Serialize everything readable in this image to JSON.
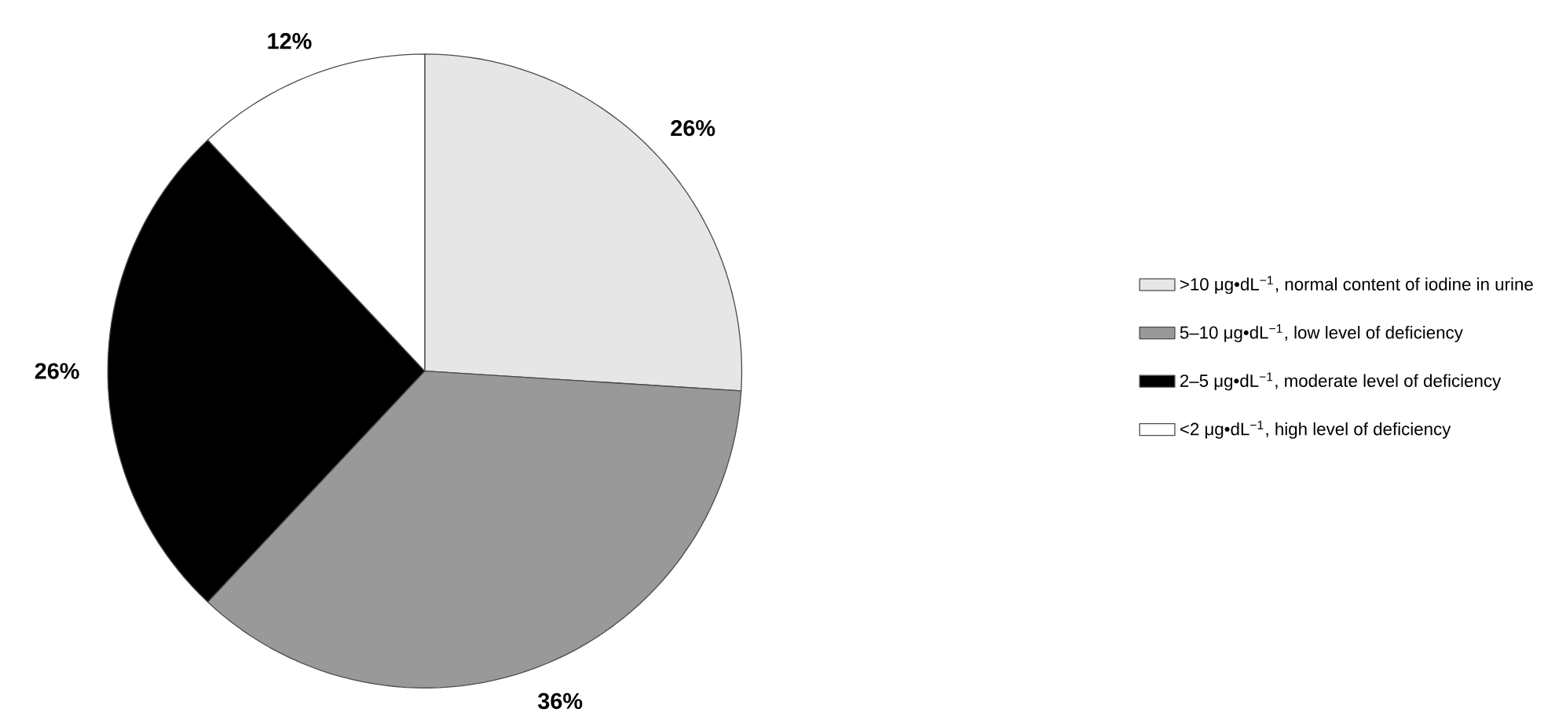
{
  "chart_data": {
    "type": "pie",
    "categories": [
      ">10 μg•dL$^{−1}$, normal content of iodine in urine",
      "5–10 μg•dL$^{−1}$, low level of deficiency",
      "2–5 μg•dL$^{−1}$, moderate level of deficiency",
      "<2 μg•dL$^{−1}$, high level of deficiency"
    ],
    "values": [
      26,
      36,
      26,
      12
    ],
    "colors": [
      "#e6e6e6",
      "#999999",
      "#000000",
      "#ffffff"
    ],
    "value_labels": [
      "26%",
      "36%",
      "26%",
      "12%"
    ],
    "legend": "right"
  }
}
